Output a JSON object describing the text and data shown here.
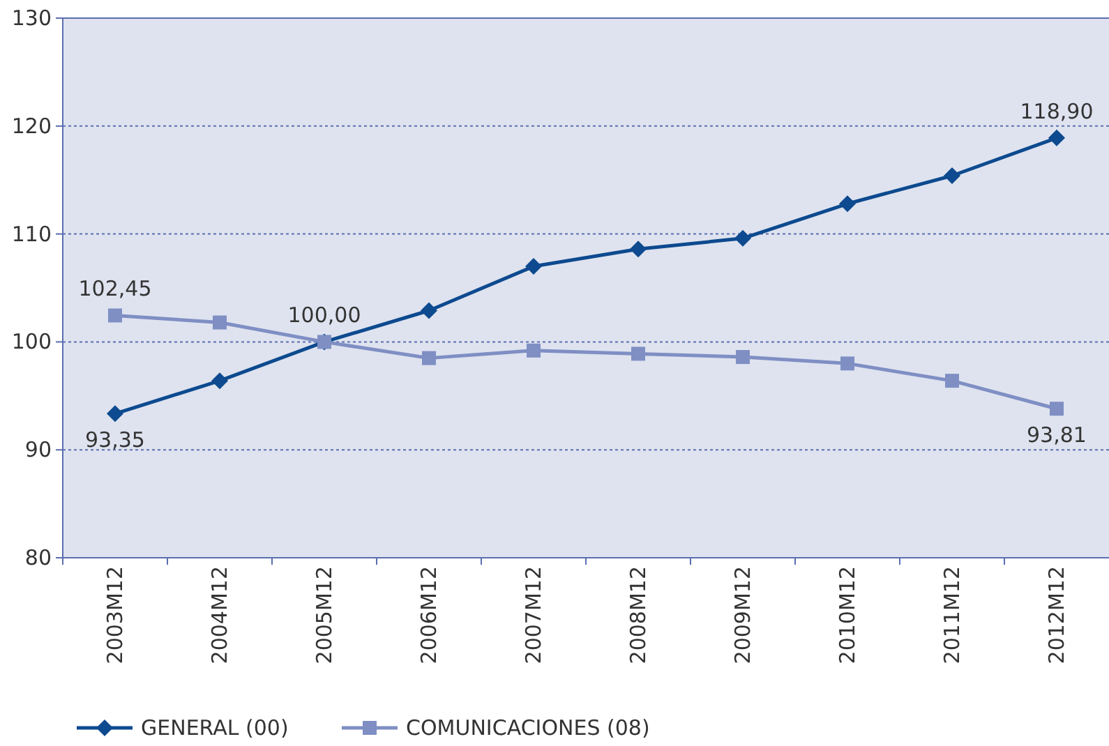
{
  "chart_data": {
    "type": "line",
    "categories": [
      "2003M12",
      "2004M12",
      "2005M12",
      "2006M12",
      "2007M12",
      "2008M12",
      "2009M12",
      "2010M12",
      "2011M12",
      "2012M12"
    ],
    "series": [
      {
        "name": "GENERAL (00)",
        "color": "#0d4a8f",
        "marker": "diamond",
        "values": [
          93.35,
          96.4,
          100,
          102.9,
          107.0,
          108.6,
          109.6,
          112.8,
          115.4,
          118.9
        ],
        "value_labels": [
          "93,35",
          null,
          "100,00",
          null,
          null,
          null,
          null,
          null,
          null,
          "118,90"
        ]
      },
      {
        "name": "COMUNICACIONES (08)",
        "color": "#7f8fc4",
        "marker": "square",
        "values": [
          102.45,
          101.8,
          100,
          98.5,
          99.2,
          98.9,
          98.6,
          98.0,
          96.4,
          93.81
        ],
        "value_labels": [
          "102,45",
          null,
          null,
          null,
          null,
          null,
          null,
          null,
          null,
          "93,81"
        ]
      }
    ],
    "ylim": [
      80,
      130
    ],
    "yticks": [
      80,
      90,
      100,
      110,
      120,
      130
    ],
    "grid": "y",
    "legend": "bottom",
    "line_style": "solid"
  }
}
